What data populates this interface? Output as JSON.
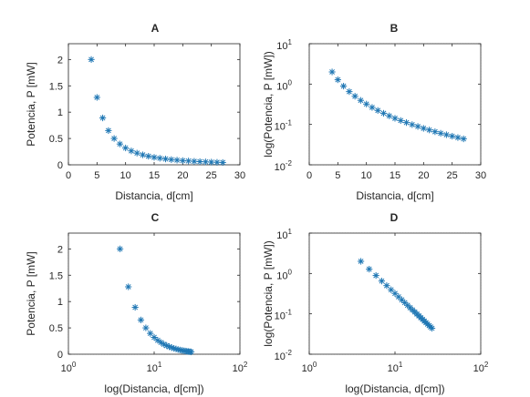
{
  "series_color": "#1f77b4",
  "chart_data": [
    {
      "type": "scatter",
      "title": "A",
      "xlabel": "Distancia, d[cm]",
      "ylabel": "Potencia, P [mW]",
      "xscale": "linear",
      "yscale": "linear",
      "xlim": [
        0,
        30
      ],
      "ylim": [
        0,
        2.3
      ],
      "xticks": [
        0,
        5,
        10,
        15,
        20,
        25,
        30
      ],
      "xticklabels": [
        "0",
        "5",
        "10",
        "15",
        "20",
        "25",
        "30"
      ],
      "yticks": [
        0,
        0.5,
        1,
        1.5,
        2
      ],
      "yticklabels": [
        "0",
        "0.5",
        "1",
        "1.5",
        "2"
      ],
      "grid": "major",
      "marker": "*"
    },
    {
      "type": "scatter",
      "title": "B",
      "xlabel": "Distancia, d[cm]",
      "ylabel": "log(Potencia, P [mW])",
      "xscale": "linear",
      "yscale": "log",
      "xlim": [
        0,
        30
      ],
      "ylim": [
        0.01,
        10
      ],
      "xticks": [
        0,
        5,
        10,
        15,
        20,
        25,
        30
      ],
      "xticklabels": [
        "0",
        "5",
        "10",
        "15",
        "20",
        "25",
        "30"
      ],
      "yticks": [
        0.01,
        0.1,
        1,
        10
      ],
      "ytickbases": [
        "10",
        "10",
        "10",
        "10"
      ],
      "ytickexps": [
        "-2",
        "-1",
        "0",
        "1"
      ],
      "grid": "major+minor",
      "marker": "*"
    },
    {
      "type": "scatter",
      "title": "C",
      "xlabel": "log(Distancia, d[cm])",
      "ylabel": "Potencia, P [mW]",
      "xscale": "log",
      "yscale": "linear",
      "xlim": [
        1,
        100
      ],
      "ylim": [
        0,
        2.3
      ],
      "xticks": [
        1,
        10,
        100
      ],
      "xtickbases": [
        "10",
        "10",
        "10"
      ],
      "xtickexps": [
        "0",
        "1",
        "2"
      ],
      "yticks": [
        0,
        0.5,
        1,
        1.5,
        2
      ],
      "yticklabels": [
        "0",
        "0.5",
        "1",
        "1.5",
        "2"
      ],
      "grid": "major+minor",
      "marker": "*"
    },
    {
      "type": "scatter",
      "title": "D",
      "xlabel": "log(Distancia, d[cm])",
      "ylabel": "log(Potencia, P [mW])",
      "xscale": "log",
      "yscale": "log",
      "xlim": [
        1,
        100
      ],
      "ylim": [
        0.01,
        10
      ],
      "xticks": [
        1,
        10,
        100
      ],
      "xtickbases": [
        "10",
        "10",
        "10"
      ],
      "xtickexps": [
        "0",
        "1",
        "2"
      ],
      "yticks": [
        0.01,
        0.1,
        1,
        10
      ],
      "ytickbases": [
        "10",
        "10",
        "10",
        "10"
      ],
      "ytickexps": [
        "-2",
        "-1",
        "0",
        "1"
      ],
      "grid": "major+minor",
      "marker": "*"
    }
  ],
  "shared_data": {
    "x": [
      4,
      5,
      6,
      7,
      8,
      9,
      10,
      11,
      12,
      13,
      14,
      15,
      16,
      17,
      18,
      19,
      20,
      21,
      22,
      23,
      24,
      25,
      26,
      27
    ],
    "y": [
      2.0,
      1.28,
      0.89,
      0.65,
      0.5,
      0.395,
      0.32,
      0.264,
      0.222,
      0.189,
      0.163,
      0.142,
      0.125,
      0.111,
      0.099,
      0.089,
      0.08,
      0.073,
      0.066,
      0.0605,
      0.0556,
      0.0512,
      0.0473,
      0.0439
    ]
  }
}
